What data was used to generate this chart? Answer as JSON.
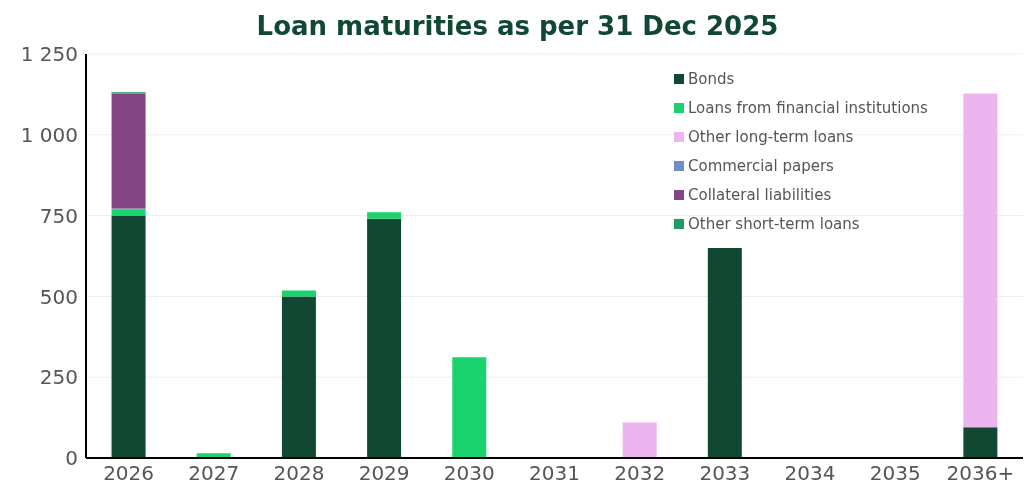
{
  "chart_data": {
    "type": "bar",
    "title": "Loan maturities as per 31 Dec 2025",
    "stacked": true,
    "categories": [
      "2026",
      "2027",
      "2028",
      "2029",
      "2030",
      "2031",
      "2032",
      "2033",
      "2034",
      "2035",
      "2036+"
    ],
    "series": [
      {
        "name": "Bonds",
        "color": "#104832",
        "values": [
          750,
          0,
          500,
          740,
          0,
          0,
          0,
          650,
          0,
          0,
          95
        ]
      },
      {
        "name": "Loans from financial institutions",
        "color": "#1bd36e",
        "values": [
          18,
          15,
          18,
          20,
          312,
          0,
          0,
          0,
          0,
          0,
          0
        ]
      },
      {
        "name": "Other long-term loans",
        "color": "#edb5f0",
        "values": [
          0,
          0,
          0,
          0,
          0,
          0,
          110,
          0,
          0,
          0,
          1033
        ]
      },
      {
        "name": "Commercial papers",
        "color": "#6d8fc6",
        "values": [
          4,
          0,
          0,
          0,
          0,
          0,
          0,
          0,
          0,
          0,
          0
        ]
      },
      {
        "name": "Collateral liabilities",
        "color": "#844584",
        "values": [
          356,
          0,
          0,
          0,
          0,
          0,
          0,
          0,
          0,
          0,
          0
        ]
      },
      {
        "name": "Other short-term loans",
        "color": "#1f9c63",
        "values": [
          4,
          0,
          0,
          0,
          0,
          0,
          0,
          0,
          0,
          0,
          0
        ]
      }
    ],
    "ylim": [
      0,
      1250
    ],
    "yticks": [
      0,
      250,
      500,
      750,
      {
        "value": 1000,
        "label": "1 000"
      },
      {
        "value": 1250,
        "label": "1 250"
      }
    ],
    "grid": "y",
    "legend": "top right"
  }
}
